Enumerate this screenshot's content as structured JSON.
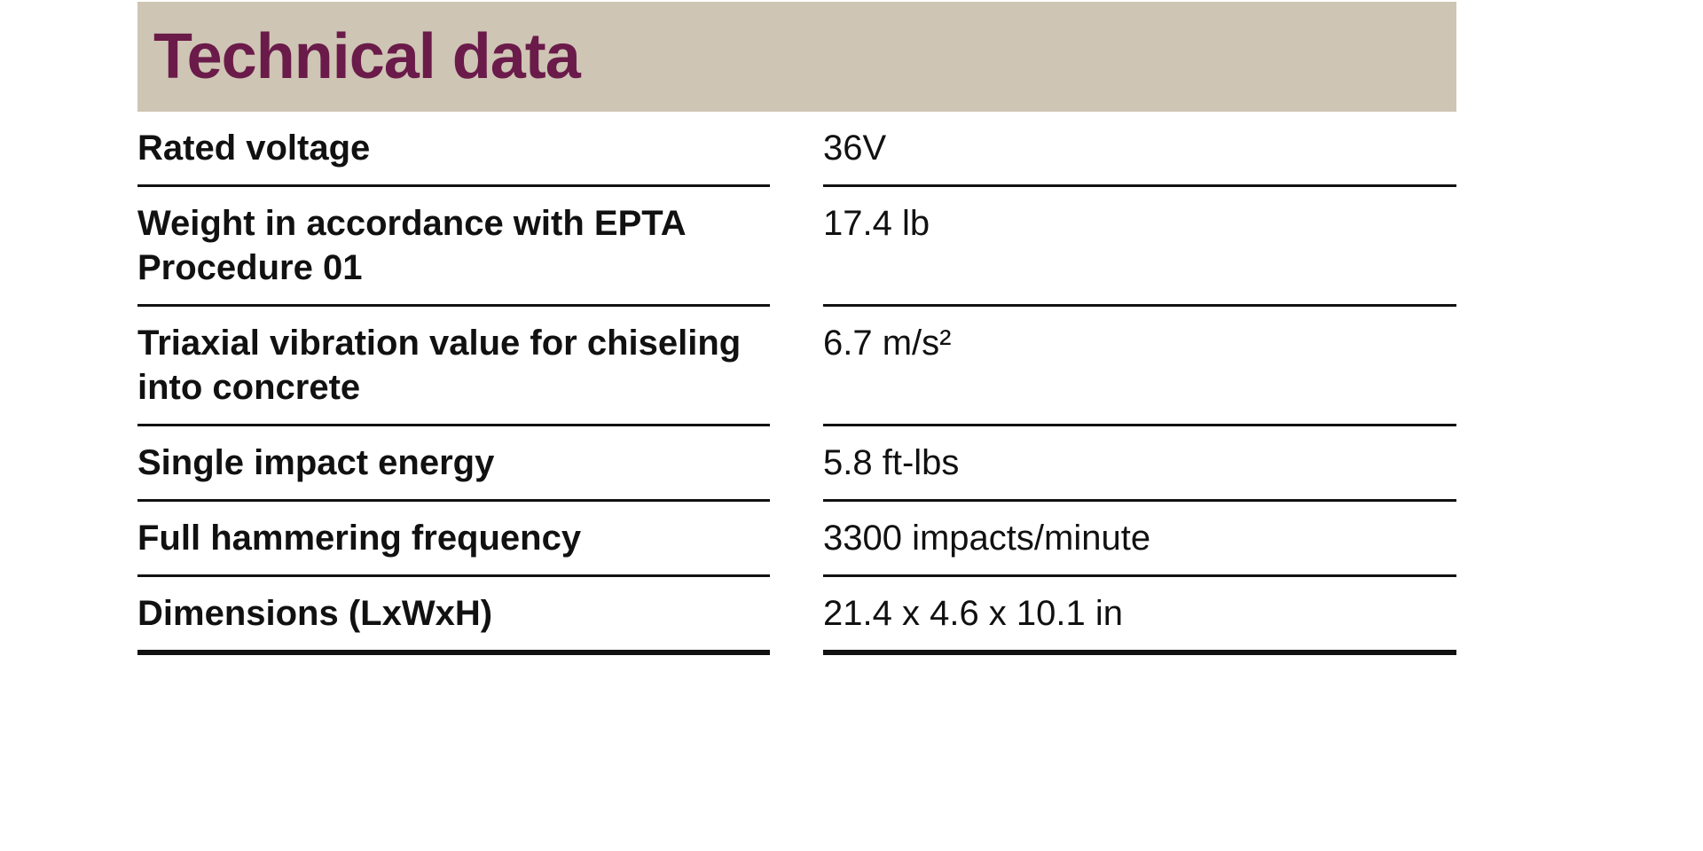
{
  "header": {
    "title": "Technical data"
  },
  "table": {
    "rows": [
      [
        "Rated voltage",
        "36V"
      ],
      [
        "Weight in accordance with EPTA Procedure 01",
        "17.4 lb"
      ],
      [
        "Triaxial vibration value for chiseling into concrete",
        "6.7 m/s²"
      ],
      [
        "Single impact energy",
        "5.8 ft-lbs"
      ],
      [
        "Full hammering frequency",
        "3300 impacts/minute"
      ],
      [
        "Dimensions (LxWxH)",
        "21.4 x 4.6 x 10.1 in"
      ]
    ]
  }
}
